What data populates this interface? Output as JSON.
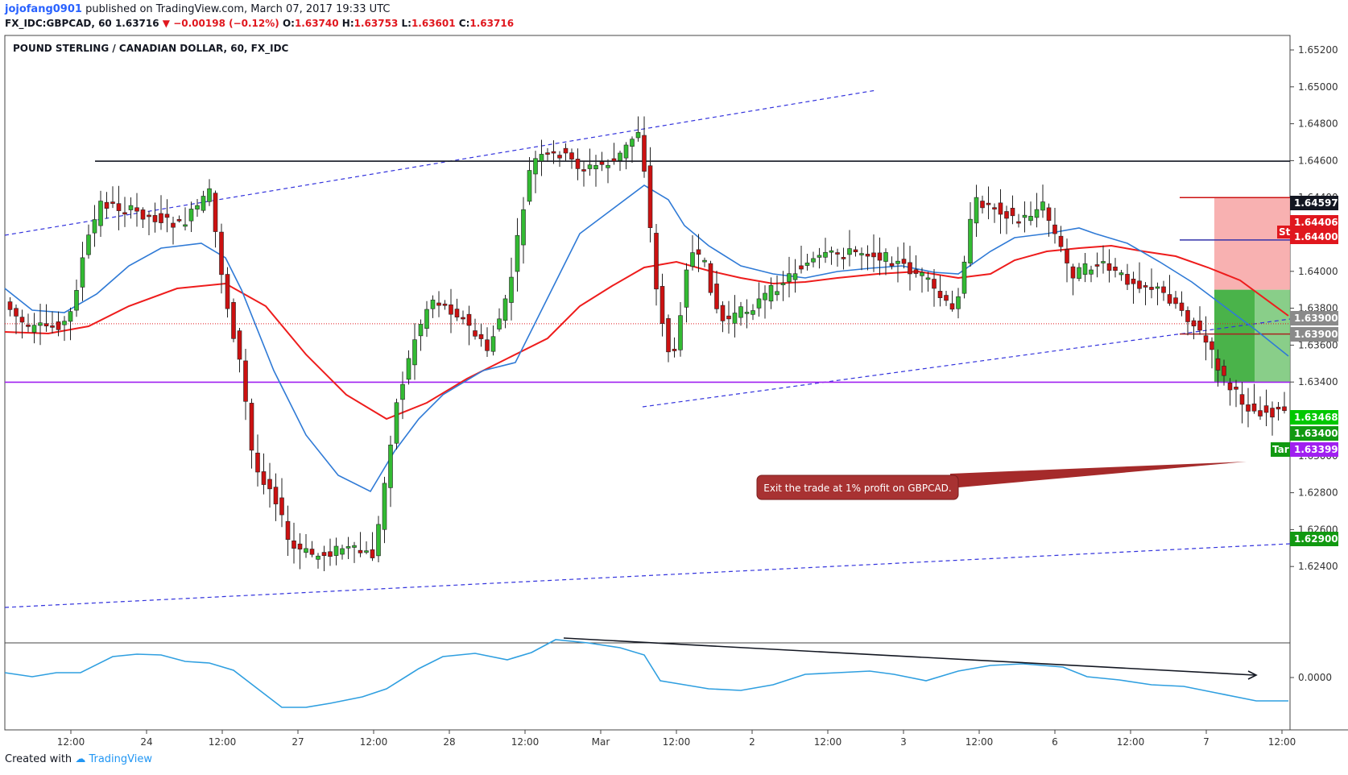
{
  "header": {
    "author": "jojofang0901",
    "published": "published on TradingView.com, March 07, 2017 19:33 UTC",
    "symbol": "FX_IDC:GBPCAD, 60",
    "last": "1.63716",
    "change": "−0.00198 (−0.12%)",
    "open_label": "O:",
    "open": "1.63740",
    "high_label": "H:",
    "high": "1.63753",
    "low_label": "L:",
    "low": "1.63601",
    "close_label": "C:",
    "close": "1.63716"
  },
  "footer": {
    "created_with": "Created with",
    "brand": "TradingView"
  },
  "chart_data": {
    "type": "candlestick",
    "title": "POUND STERLING / CANADIAN DOLLAR, 60, FX_IDC",
    "y_ticks": [
      "1.65200",
      "1.65000",
      "1.64800",
      "1.64600",
      "1.64400",
      "1.64200",
      "1.64000",
      "1.63800",
      "1.63600",
      "1.63400",
      "1.63200",
      "1.63000",
      "1.62800",
      "1.62600",
      "1.62400"
    ],
    "x_ticks": [
      "12:00",
      "24",
      "12:00",
      "27",
      "12:00",
      "28",
      "12:00",
      "Mar",
      "12:00",
      "2",
      "12:00",
      "3",
      "12:00",
      "6",
      "12:00",
      "7",
      "12:00"
    ],
    "price_tags": [
      {
        "label": "1.64597",
        "color": "#131722"
      },
      {
        "label": "1.64406",
        "color": "#e0171e"
      },
      {
        "label": "1.64400",
        "color": "#e0171e"
      },
      {
        "label": "1.63900",
        "color": "#8a8a8a"
      },
      {
        "label": "1.63900",
        "color": "#8a8a8a"
      },
      {
        "label": "1.63468",
        "color": "#00c800"
      },
      {
        "label": "1.63400",
        "color": "#119911"
      },
      {
        "label": "1.63399",
        "color": "#a020f0"
      },
      {
        "label": "1.62900",
        "color": "#119911"
      }
    ],
    "position_tags": {
      "stop": "St",
      "target": "Tar"
    },
    "horizontal_levels": [
      {
        "value": 1.64597,
        "color": "#131722"
      },
      {
        "value": 1.63399,
        "color": "#a020f0"
      },
      {
        "value": 1.63716,
        "color": "#e0171e"
      }
    ],
    "annotation": "Exit the trade at 1% profit on GBPCAD.",
    "oscillator": {
      "zero_label": "0.0000"
    },
    "colors": {
      "up": "#33bb33",
      "down": "#cc1111",
      "ema_fast": "#2f7ad6",
      "ema_slow": "#ee1c1c",
      "channel": "#3333dd"
    }
  }
}
